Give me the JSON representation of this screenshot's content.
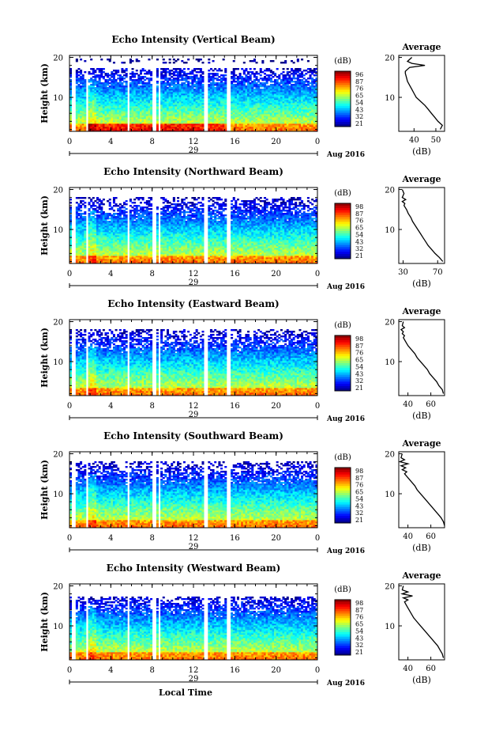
{
  "figure": {
    "xlabel_bottom": "Local Time",
    "date_label": "Aug 2016",
    "date_marker": "29",
    "colorbar_unit": "(dB)",
    "avg_title": "Average",
    "avg_xlabel": "(dB)",
    "ylabel": "Height (km)"
  },
  "chart_data": [
    {
      "type": "heatmap",
      "title": "Echo Intensity (Vertical Beam)",
      "xlabel": "",
      "ylabel": "Height (km)",
      "x_ticks": [
        "0",
        "4",
        "8",
        "12",
        "16",
        "20",
        "0"
      ],
      "xlim": [
        0,
        24
      ],
      "y_ticks": [
        "10",
        "20"
      ],
      "ylim": [
        1.5,
        20.5
      ],
      "colorbar": {
        "unit": "(dB)",
        "ticks": [
          "96",
          "87",
          "76",
          "65",
          "54",
          "43",
          "32",
          "21"
        ]
      },
      "data_gaps_hours": [
        [
          0.2,
          0.5
        ],
        [
          1.6,
          1.8
        ],
        [
          5.55,
          5.75
        ],
        [
          8.1,
          8.3
        ],
        [
          8.6,
          8.85
        ],
        [
          13.0,
          13.3
        ],
        [
          15.2,
          15.5
        ]
      ],
      "profile": {
        "title": "Average",
        "xlabel": "(dB)",
        "x_ticks": [
          "40",
          "50"
        ],
        "xlim": [
          33,
          54
        ],
        "y_ticks": [
          "10",
          "20"
        ],
        "heights": [
          20,
          19,
          18.5,
          18,
          17.5,
          17,
          16.5,
          16,
          15,
          14,
          13,
          12,
          11,
          10,
          9,
          8,
          7,
          6,
          5,
          4,
          3,
          2
        ],
        "values": [
          39,
          37,
          39,
          45,
          38,
          37,
          36,
          36,
          36.5,
          37,
          38,
          39,
          40,
          41,
          43,
          45,
          46.5,
          48,
          49.5,
          51,
          53,
          52
        ]
      }
    },
    {
      "type": "heatmap",
      "title": "Echo Intensity (Northward Beam)",
      "xlabel": "",
      "ylabel": "Height (km)",
      "x_ticks": [
        "0",
        "4",
        "8",
        "12",
        "16",
        "20",
        "0"
      ],
      "xlim": [
        0,
        24
      ],
      "y_ticks": [
        "10",
        "20"
      ],
      "ylim": [
        1.5,
        20.5
      ],
      "colorbar": {
        "unit": "(dB)",
        "ticks": [
          "98",
          "87",
          "76",
          "65",
          "54",
          "43",
          "32",
          "21"
        ]
      },
      "data_gaps_hours": [
        [
          0.2,
          0.5
        ],
        [
          1.6,
          1.8
        ],
        [
          5.55,
          5.75
        ],
        [
          8.1,
          8.3
        ],
        [
          8.6,
          8.85
        ],
        [
          13.0,
          13.3
        ],
        [
          15.2,
          15.5
        ]
      ],
      "profile": {
        "title": "Average",
        "xlabel": "(dB)",
        "x_ticks": [
          "30",
          "70"
        ],
        "xlim": [
          25,
          78
        ],
        "y_ticks": [
          "10",
          "20"
        ],
        "heights": [
          20,
          19,
          18,
          17.5,
          17,
          16.5,
          16,
          15,
          14,
          13,
          12,
          11,
          10,
          9,
          8,
          7,
          6,
          5,
          4,
          3,
          2
        ],
        "values": [
          29,
          31,
          29,
          33,
          29,
          32,
          31,
          34,
          36,
          39,
          41,
          44,
          47,
          50,
          53,
          56,
          59,
          63,
          67,
          72,
          76
        ]
      }
    },
    {
      "type": "heatmap",
      "title": "Echo Intensity (Eastward Beam)",
      "xlabel": "",
      "ylabel": "Height (km)",
      "x_ticks": [
        "0",
        "4",
        "8",
        "12",
        "16",
        "20",
        "0"
      ],
      "xlim": [
        0,
        24
      ],
      "y_ticks": [
        "10",
        "20"
      ],
      "ylim": [
        1.5,
        20.5
      ],
      "colorbar": {
        "unit": "(dB)",
        "ticks": [
          "98",
          "87",
          "76",
          "65",
          "54",
          "43",
          "32",
          "21"
        ]
      },
      "data_gaps_hours": [
        [
          0.2,
          0.5
        ],
        [
          1.6,
          1.8
        ],
        [
          5.55,
          5.75
        ],
        [
          8.1,
          8.3
        ],
        [
          8.6,
          8.85
        ],
        [
          13.0,
          13.3
        ],
        [
          15.2,
          15.5
        ]
      ],
      "profile": {
        "title": "Average",
        "xlabel": "(dB)",
        "x_ticks": [
          "40",
          "60"
        ],
        "xlim": [
          32,
          72
        ],
        "y_ticks": [
          "10",
          "20"
        ],
        "heights": [
          20,
          19,
          18.5,
          18,
          17.5,
          17,
          16.5,
          16,
          15,
          14,
          13,
          12,
          11,
          10,
          9,
          8,
          7,
          6,
          5,
          4,
          3,
          2
        ],
        "values": [
          36,
          35,
          37,
          34,
          36,
          35,
          37,
          36,
          38,
          40,
          43,
          46,
          48,
          51,
          54,
          57,
          59,
          62,
          65,
          67,
          70,
          71
        ]
      }
    },
    {
      "type": "heatmap",
      "title": "Echo Intensity (Southward Beam)",
      "xlabel": "",
      "ylabel": "Height (km)",
      "x_ticks": [
        "0",
        "4",
        "8",
        "12",
        "16",
        "20",
        "0"
      ],
      "xlim": [
        0,
        24
      ],
      "y_ticks": [
        "10",
        "20"
      ],
      "ylim": [
        1.5,
        20.5
      ],
      "colorbar": {
        "unit": "(dB)",
        "ticks": [
          "98",
          "87",
          "76",
          "65",
          "54",
          "43",
          "32",
          "21"
        ]
      },
      "data_gaps_hours": [
        [
          0.2,
          0.5
        ],
        [
          1.6,
          1.8
        ],
        [
          5.55,
          5.75
        ],
        [
          8.1,
          8.3
        ],
        [
          8.6,
          8.85
        ],
        [
          13.0,
          13.3
        ],
        [
          15.2,
          15.5
        ]
      ],
      "profile": {
        "title": "Average",
        "xlabel": "(dB)",
        "x_ticks": [
          "40",
          "60"
        ],
        "xlim": [
          32,
          72
        ],
        "y_ticks": [
          "10",
          "20"
        ],
        "heights": [
          20,
          19,
          18.5,
          18,
          17.5,
          17,
          16.5,
          16,
          15.5,
          15,
          14,
          13,
          12,
          11,
          10,
          9,
          8,
          7,
          6,
          5,
          4,
          3,
          2
        ],
        "values": [
          35,
          34,
          37,
          33,
          40,
          34,
          38,
          35,
          39,
          37,
          40,
          43,
          46,
          48,
          51,
          54,
          57,
          60,
          63,
          66,
          69,
          71,
          72
        ]
      }
    },
    {
      "type": "heatmap",
      "title": "Echo Intensity (Westward Beam)",
      "xlabel": "Local Time",
      "ylabel": "Height (km)",
      "x_ticks": [
        "0",
        "4",
        "8",
        "12",
        "16",
        "20",
        "0"
      ],
      "xlim": [
        0,
        24
      ],
      "y_ticks": [
        "10",
        "20"
      ],
      "ylim": [
        1.5,
        20.5
      ],
      "colorbar": {
        "unit": "(dB)",
        "ticks": [
          "98",
          "87",
          "76",
          "65",
          "54",
          "43",
          "32",
          "21"
        ]
      },
      "data_gaps_hours": [
        [
          0.2,
          0.5
        ],
        [
          1.6,
          1.8
        ],
        [
          5.55,
          5.75
        ],
        [
          8.1,
          8.3
        ],
        [
          8.6,
          8.85
        ],
        [
          13.0,
          13.3
        ],
        [
          15.2,
          15.5
        ]
      ],
      "profile": {
        "title": "Average",
        "xlabel": "(dB)",
        "x_ticks": [
          "40",
          "60"
        ],
        "xlim": [
          32,
          72
        ],
        "y_ticks": [
          "10",
          "20"
        ],
        "heights": [
          20,
          19,
          18.5,
          18,
          17.5,
          17,
          16.5,
          16,
          15.5,
          15,
          14,
          13,
          12,
          11,
          10,
          9,
          8,
          7,
          6,
          5,
          4,
          3,
          2
        ],
        "values": [
          36,
          35,
          40,
          35,
          44,
          36,
          40,
          37,
          38,
          39,
          41,
          43,
          45,
          48,
          51,
          54,
          57,
          60,
          63,
          66,
          68,
          70,
          71
        ]
      }
    }
  ]
}
